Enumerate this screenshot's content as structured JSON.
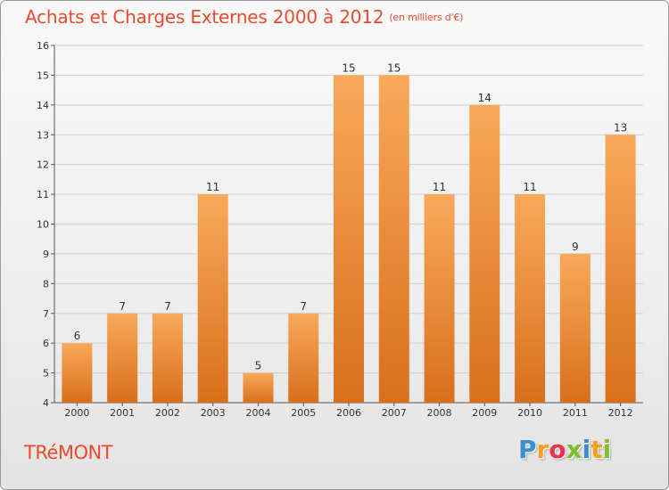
{
  "title": "Achats et Charges Externes 2000 à 2012",
  "unit": "(en milliers d'€)",
  "commune": "TRéMONT",
  "logo": {
    "letters": [
      "P",
      "r",
      "o",
      "x",
      "i",
      "t",
      "i"
    ],
    "colors": [
      "#3a8fd1",
      "#f4a01e",
      "#e8334a",
      "#7fbf2f",
      "#3a8fd1",
      "#f4a01e",
      "#7fbf2f"
    ]
  },
  "colors": {
    "title": "#ea4a2e",
    "bar_top": "#f8a95a",
    "bar_bottom": "#d96f1b",
    "grid": "#cfcfcf"
  },
  "chart_data": {
    "type": "bar",
    "title": "Achats et Charges Externes 2000 à 2012",
    "subtitle": "(en milliers d'€)",
    "categories": [
      "2000",
      "2001",
      "2002",
      "2003",
      "2004",
      "2005",
      "2006",
      "2007",
      "2008",
      "2009",
      "2010",
      "2011",
      "2012"
    ],
    "values": [
      6,
      7,
      7,
      11,
      5,
      7,
      15,
      15,
      11,
      14,
      11,
      9,
      13
    ],
    "ylim": [
      4,
      16
    ],
    "yticks": [
      4,
      5,
      6,
      7,
      8,
      9,
      10,
      11,
      12,
      13,
      14,
      15,
      16
    ],
    "grid": true,
    "data_labels": true,
    "xlabel": "",
    "ylabel": ""
  }
}
